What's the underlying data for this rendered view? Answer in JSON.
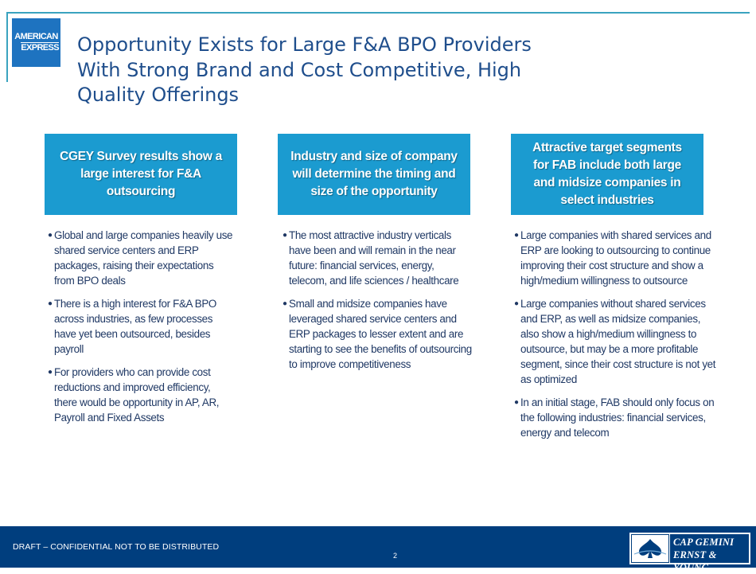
{
  "logo": {
    "line1": "AMERICAN",
    "line2": "EXPRESS"
  },
  "title": {
    "line1": "Opportunity Exists for Large F&A BPO Providers",
    "line2": "With Strong Brand and Cost Competitive, High",
    "line3": "Quality Offerings"
  },
  "columns": [
    {
      "heading": "CGEY Survey results show a large interest for F&A outsourcing",
      "bullets": [
        "Global and large companies heavily use shared service centers and ERP packages, raising their expectations from BPO deals",
        "There is a high interest for F&A BPO across industries, as few processes have yet been outsourced, besides payroll",
        "For providers who can provide cost reductions and improved efficiency, there would be opportunity in AP, AR, Payroll and Fixed Assets"
      ]
    },
    {
      "heading": "Industry and size of company will determine the timing and size of the opportunity",
      "bullets": [
        "The most attractive industry verticals have been and will remain in the near future: financial services, energy, telecom, and life sciences / healthcare",
        "Small and midsize companies have leveraged shared service centers and ERP packages to lesser extent and are starting to see the  benefits of outsourcing to improve competitiveness"
      ]
    },
    {
      "heading": "Attractive target segments for FAB include both large and midsize companies in select industries",
      "bullets": [
        "Large companies with shared services and ERP are looking to outsourcing to continue improving their cost structure and show a high/medium willingness to outsource",
        "Large companies without shared services and ERP, as well as midsize companies, also show a high/medium willingness to outsource, but may be a more profitable segment, since their cost structure is not yet as optimized",
        "In an initial stage, FAB should only focus on the following industries: financial services, energy and telecom"
      ]
    }
  ],
  "footer": {
    "confidential": "DRAFT – CONFIDENTIAL NOT TO BE DISTRIBUTED",
    "page_number": "2",
    "brand_line1": "CAP GEMINI",
    "brand_line2": "ERNST & YOUNG"
  },
  "colors": {
    "title": "#1f4e8c",
    "heading_box": "#1b9bd0",
    "footer": "#003e7e",
    "amex_blue": "#1e73c0",
    "rule": "#3aa3bf"
  }
}
